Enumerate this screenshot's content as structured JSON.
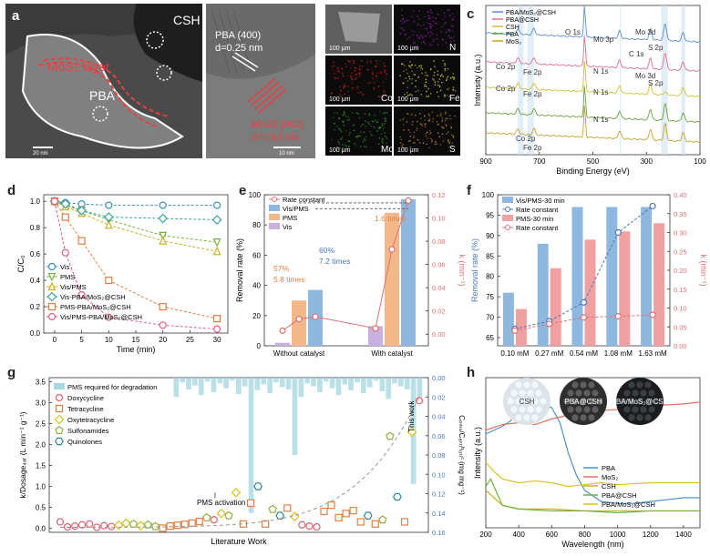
{
  "panels": {
    "a": "a",
    "b": "b",
    "c": "c",
    "d": "d",
    "e": "e",
    "f": "f",
    "g": "g",
    "h": "h"
  },
  "a": {
    "csh": "CSH",
    "mos2_layer": "MoS₂ layer",
    "pba": "PBA",
    "pba400": "PBA (400)",
    "d1": "d=0.25 nm",
    "mos2_002": "MoS2 (002)",
    "d2": "d=0.63 nm",
    "scale1": "20 nm",
    "scale2": "10 nm"
  },
  "b": {
    "scale": "100 μm",
    "elements": [
      "",
      "N",
      "Co",
      "Fe",
      "Mo",
      "S"
    ],
    "colors": [
      "#7a7a7a",
      "#9b1fb3",
      "#d32020",
      "#d8cc22",
      "#2e9b28",
      "#c9831f"
    ]
  },
  "c": {
    "xlabel": "Binding Energy (eV)",
    "ylabel": "Intensity (a.u.)",
    "xticks": [
      "900",
      "700",
      "500",
      "300",
      "100"
    ],
    "legend": [
      "PBA/MoS₂@CSH",
      "PBA@CSH",
      "CSH",
      "PBA",
      "MoS₂"
    ],
    "colors": [
      "#5a8fd0",
      "#e0708a",
      "#d0c030",
      "#6aa040",
      "#c8a030"
    ],
    "labels": [
      "O 1s",
      "Mo 3p",
      "C 1s",
      "Mo 3d",
      "S 2p",
      "Co 2p",
      "Fe 2p",
      "N 1s",
      "Mo 3d",
      "S 2p",
      "Co 2p",
      "Fe 2p",
      "N 1s",
      "N 1s",
      "Co 2p",
      "Fe 2p"
    ]
  },
  "chart_data": [
    {
      "type": "line",
      "panel": "d",
      "xlabel": "Time (min)",
      "ylabel": "C/C₀",
      "ylim": [
        0,
        1.05
      ],
      "xlim": [
        -2,
        32
      ],
      "x": [
        0,
        2,
        5,
        10,
        20,
        30
      ],
      "series": [
        {
          "name": "Vis",
          "color": "#3a8fc0",
          "marker": "circle",
          "values": [
            1.0,
            0.99,
            0.98,
            0.97,
            0.97,
            0.97
          ]
        },
        {
          "name": "PMS",
          "color": "#7ab040",
          "marker": "triangle-down",
          "values": [
            1.0,
            0.97,
            0.93,
            0.86,
            0.74,
            0.69
          ]
        },
        {
          "name": "Vis/PMS",
          "color": "#c9b020",
          "marker": "triangle",
          "values": [
            1.0,
            0.96,
            0.91,
            0.82,
            0.7,
            0.62
          ]
        },
        {
          "name": "Vis-PBA/MoS₂@CSH",
          "color": "#3aa0a0",
          "marker": "diamond",
          "values": [
            1.0,
            0.98,
            0.93,
            0.88,
            0.87,
            0.86
          ]
        },
        {
          "name": "PMS-PBA/MoS₂@CSH",
          "color": "#e08040",
          "marker": "square",
          "values": [
            1.0,
            0.88,
            0.7,
            0.4,
            0.2,
            0.11
          ]
        },
        {
          "name": "Vis/PMS-PBA/MoS₂@CSH",
          "color": "#e06080",
          "marker": "circle",
          "values": [
            1.0,
            0.61,
            0.29,
            0.12,
            0.06,
            0.03
          ]
        }
      ]
    },
    {
      "type": "bar",
      "panel": "e",
      "categories": [
        "Without catalyst",
        "With catalyst"
      ],
      "ylabel": "Removal rate (%)",
      "y2label": "k (min⁻¹)",
      "ylim": [
        0,
        100
      ],
      "y2lim": [
        -0.01,
        0.12
      ],
      "series": [
        {
          "name": "Vis",
          "values": [
            2,
            13
          ],
          "color": "#c9b0e0"
        },
        {
          "name": "PMS",
          "values": [
            30,
            88
          ],
          "color": "#f2b88a"
        },
        {
          "name": "Vis/PMS",
          "values": [
            37,
            97
          ],
          "color": "#8fb8e0"
        }
      ],
      "rate_constant": {
        "name": "Rate constant",
        "color": "#e07070",
        "values": [
          0.003,
          0.013,
          0.015,
          0.005,
          0.073,
          0.115
        ]
      },
      "annotations": [
        "57%",
        "5.8 times",
        "60%",
        "7.2 times",
        "1.6 times"
      ]
    },
    {
      "type": "bar",
      "panel": "f",
      "categories": [
        "0.10 mM",
        "0.27 mM",
        "0.54 mM",
        "1.08 mM",
        "1.63 mM"
      ],
      "ylabel": "Removal rate (%)",
      "y2label": "k (min⁻¹)",
      "ylim": [
        63,
        100
      ],
      "y2lim": [
        0,
        0.4
      ],
      "series": [
        {
          "name": "Vis/PMS-30 min",
          "values": [
            76,
            88,
            97,
            97,
            97
          ],
          "color": "#8fb8e0"
        },
        {
          "name": "PMS-30 min",
          "values": [
            72,
            82,
            89,
            91,
            93
          ],
          "color": "#f0a0a0"
        }
      ],
      "rate_constant_blue": {
        "name": "Rate constant",
        "values": [
          0.045,
          0.065,
          0.115,
          0.3,
          0.37
        ],
        "color": "#4a78c0"
      },
      "rate_constant_red": {
        "name": "Rate constant",
        "values": [
          0.04,
          0.058,
          0.075,
          0.078,
          0.082
        ],
        "color": "#e07070"
      }
    },
    {
      "type": "scatter",
      "panel": "g",
      "xlabel": "Literature Work",
      "ylabel": "k/Dosage₄ₐₜ (L min⁻¹ g⁻¹)",
      "y2label": "Cₚₘₛ/Cₐₙₜᵢᵇᵢₒₜᵢᶜ (mg mg⁻¹)",
      "ylim": [
        -0.1,
        3.6
      ],
      "y2lim": [
        0.16,
        0
      ],
      "legend": [
        "PMS required for degradation",
        "Doxycycline",
        "Tetracycline",
        "Oxytetracycline",
        "Sulfonamides",
        "Quinolones"
      ],
      "annotations": [
        "PMS activation",
        "This work"
      ],
      "bars": [
        0.02,
        0.005,
        0.012,
        0.008,
        0.018,
        0.004,
        0.015,
        0.006,
        0.011,
        0.003,
        0.017,
        0.009,
        0.14,
        0.013,
        0.007,
        0.016,
        0.005,
        0.01,
        0.012,
        0.08,
        0.02,
        0.006,
        0.009,
        0.015,
        0.004,
        0.011,
        0.018,
        0.007,
        0.013,
        0.005,
        0.016,
        0.01,
        0.003,
        0.014,
        0.022,
        0.006,
        0.009,
        0.012,
        0.11,
        0.02
      ],
      "points": [
        {
          "t": 0,
          "v": 0.15
        },
        {
          "t": 0,
          "v": 0.03
        },
        {
          "t": 0,
          "v": 0.05
        },
        {
          "t": 0,
          "v": 0.08
        },
        {
          "t": 0,
          "v": 0.1
        },
        {
          "t": 0,
          "v": 0.02
        },
        {
          "t": 0,
          "v": 0.06
        },
        {
          "t": 0,
          "v": 0.04
        },
        {
          "t": 2,
          "v": 0.07
        },
        {
          "t": 2,
          "v": 0.12
        },
        {
          "t": 3,
          "v": 0.1
        },
        {
          "t": 2,
          "v": 0.06
        },
        {
          "t": 3,
          "v": 0.08
        },
        {
          "t": 3,
          "v": 0.04
        },
        {
          "t": 1,
          "v": 0.0
        },
        {
          "t": 1,
          "v": 0.05
        },
        {
          "t": 1,
          "v": 0.07
        },
        {
          "t": 1,
          "v": 0.09
        },
        {
          "t": 1,
          "v": 0.12
        },
        {
          "t": 1,
          "v": 0.16
        },
        {
          "t": 3,
          "v": 0.25
        },
        {
          "t": 0,
          "v": 0.2
        },
        {
          "t": 2,
          "v": 0.35
        },
        {
          "t": 3,
          "v": 0.3
        },
        {
          "t": 2,
          "v": 0.85
        },
        {
          "t": 1,
          "v": 0.1
        },
        {
          "t": 1,
          "v": 0.6
        },
        {
          "t": 4,
          "v": 1.0
        },
        {
          "t": 1,
          "v": 0.1
        },
        {
          "t": 3,
          "v": 0.45
        },
        {
          "t": 4,
          "v": 0.3
        },
        {
          "t": 1,
          "v": 0.48
        },
        {
          "t": 2,
          "v": 0.28
        },
        {
          "t": 0,
          "v": 0.08
        },
        {
          "t": 0,
          "v": 0.05
        },
        {
          "t": 0,
          "v": 0.03
        },
        {
          "t": 1,
          "v": 0.4
        },
        {
          "t": 1,
          "v": 0.55
        },
        {
          "t": 1,
          "v": 0.25
        },
        {
          "t": 1,
          "v": 0.35
        },
        {
          "t": 1,
          "v": 0.42
        },
        {
          "t": 1,
          "v": 0.15
        },
        {
          "t": 4,
          "v": 0.3
        },
        {
          "t": 1,
          "v": 0.1
        },
        {
          "t": 3,
          "v": 0.2
        },
        {
          "t": 3,
          "v": 2.2
        },
        {
          "t": 4,
          "v": 0.75
        },
        {
          "t": 1,
          "v": 0.15
        },
        {
          "t": 2,
          "v": 2.3
        },
        {
          "t": 0,
          "v": 3.05
        }
      ]
    },
    {
      "type": "line",
      "panel": "h",
      "xlabel": "Wavelength (nm)",
      "ylabel": "Intensity (a.u.)",
      "xlim": [
        200,
        1500
      ],
      "xticks": [
        200,
        400,
        600,
        800,
        1000,
        1200,
        1400
      ],
      "series": [
        {
          "name": "PBA",
          "color": "#4a90c8",
          "x": [
            200,
            250,
            300,
            350,
            400,
            450,
            500,
            550,
            600,
            650,
            700,
            750,
            800,
            900,
            1000,
            1100,
            1200,
            1300,
            1400,
            1500
          ],
          "values": [
            0.5,
            0.52,
            0.54,
            0.57,
            0.63,
            0.62,
            0.65,
            0.66,
            0.64,
            0.56,
            0.4,
            0.28,
            0.2,
            0.14,
            0.13,
            0.13,
            0.14,
            0.15,
            0.16,
            0.16
          ]
        },
        {
          "name": "MoS₂",
          "color": "#e07060",
          "x": [
            200,
            300,
            400,
            500,
            600,
            700,
            800,
            1000,
            1200,
            1400,
            1500
          ],
          "values": [
            0.52,
            0.55,
            0.56,
            0.55,
            0.58,
            0.6,
            0.62,
            0.63,
            0.65,
            0.66,
            0.67
          ]
        },
        {
          "name": "CSH",
          "color": "#c8b020",
          "x": [
            200,
            250,
            300,
            400,
            600,
            800,
            1000,
            1200,
            1400,
            1500
          ],
          "values": [
            0.2,
            0.16,
            0.12,
            0.1,
            0.1,
            0.09,
            0.09,
            0.09,
            0.09,
            0.09
          ]
        },
        {
          "name": "PBA@CSH",
          "color": "#70b040",
          "x": [
            200,
            230,
            260,
            300,
            400,
            600,
            800,
            1000,
            1200,
            1400,
            1500
          ],
          "values": [
            0.22,
            0.26,
            0.2,
            0.12,
            0.1,
            0.09,
            0.09,
            0.08,
            0.09,
            0.09,
            0.09
          ]
        },
        {
          "name": "PBA/MoS₂@CSH",
          "color": "#e0c020",
          "x": [
            200,
            250,
            300,
            400,
            500,
            600,
            700,
            800,
            900,
            1000,
            1200,
            1400,
            1500
          ],
          "values": [
            0.35,
            0.3,
            0.26,
            0.24,
            0.25,
            0.24,
            0.22,
            0.23,
            0.24,
            0.23,
            0.24,
            0.24,
            0.24
          ]
        }
      ],
      "insets": [
        "CSH",
        "PBA@CSH",
        "PBA/MoS₂@CSH"
      ]
    }
  ]
}
